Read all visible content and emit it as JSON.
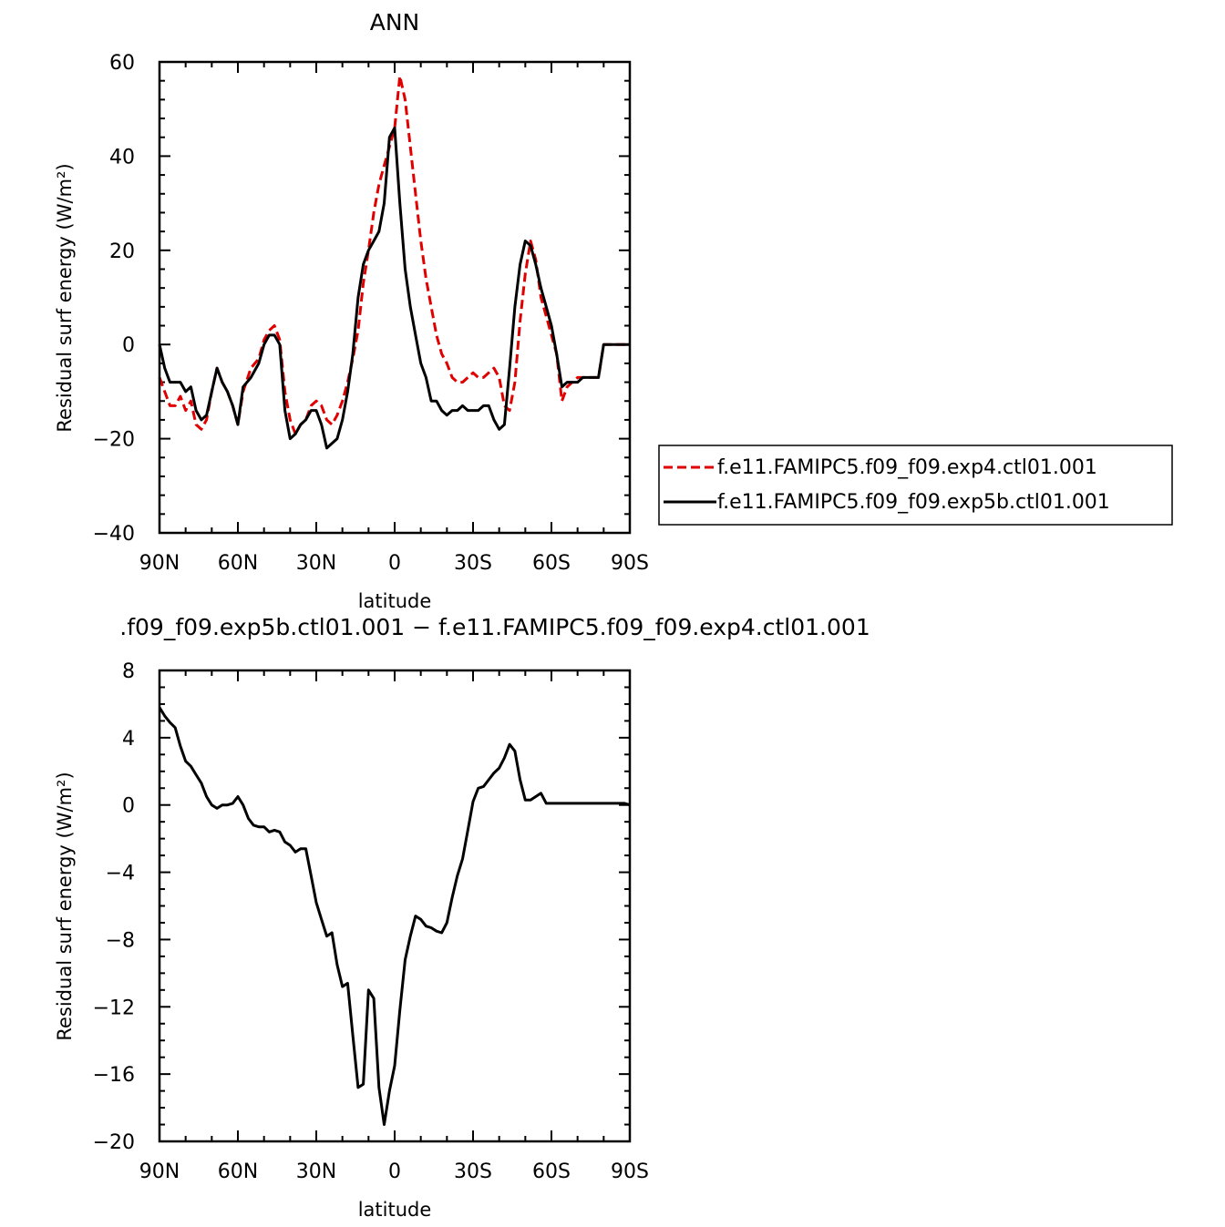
{
  "chart_data": [
    {
      "type": "line",
      "title": "ANN",
      "xlabel": "latitude",
      "ylabel": "Residual surf energy (W/m²)",
      "xlim": [
        90,
        -90
      ],
      "ylim": [
        -40,
        60
      ],
      "x_ticks": [
        90,
        60,
        30,
        0,
        -30,
        -60,
        -90
      ],
      "x_tick_labels": [
        "90N",
        "60N",
        "30N",
        "0",
        "30S",
        "60S",
        "90S"
      ],
      "y_ticks": [
        -40,
        -20,
        0,
        20,
        40,
        60
      ],
      "y_tick_labels": [
        "−40",
        "−20",
        "0",
        "20",
        "40",
        "60"
      ],
      "legend_position": "right",
      "series": [
        {
          "name": "f.e11.FAMIPC5.f09_f09.exp4.ctl01.001",
          "color": "#e00000",
          "dash": "dashed",
          "x": [
            90,
            88,
            86,
            84,
            82,
            80,
            78,
            76,
            74,
            72,
            70,
            68,
            66,
            64,
            62,
            60,
            58,
            55,
            52,
            50,
            48,
            46,
            44,
            42,
            40,
            38,
            36,
            34,
            32,
            30,
            28,
            26,
            24,
            22,
            20,
            18,
            16,
            14,
            12,
            10,
            8,
            6,
            4,
            2,
            0,
            -2,
            -4,
            -6,
            -8,
            -10,
            -12,
            -14,
            -16,
            -18,
            -20,
            -22,
            -24,
            -26,
            -28,
            -30,
            -32,
            -34,
            -36,
            -38,
            -40,
            -42,
            -44,
            -46,
            -48,
            -50,
            -52,
            -54,
            -56,
            -58,
            -60,
            -62,
            -64,
            -66,
            -68,
            -70,
            -72,
            -74,
            -76,
            -78,
            -80,
            -84,
            -88,
            -90
          ],
          "y": [
            -7,
            -10,
            -13,
            -13,
            -11,
            -14,
            -12,
            -17,
            -18,
            -16,
            -10,
            -5,
            -8,
            -10,
            -13,
            -17,
            -10,
            -5,
            -3,
            1,
            3,
            4,
            1,
            -10,
            -16,
            -19,
            -17,
            -16,
            -13,
            -12,
            -13,
            -16,
            -17,
            -15,
            -12,
            -8,
            -3,
            3,
            13,
            20,
            28,
            34,
            38,
            42,
            46,
            57,
            52,
            42,
            32,
            22,
            14,
            8,
            2,
            -2,
            -4,
            -7,
            -8,
            -8,
            -7,
            -6,
            -7,
            -7,
            -6,
            -5,
            -7,
            -13,
            -14,
            -8,
            5,
            15,
            22,
            18,
            10,
            6,
            2,
            -2,
            -12,
            -9,
            -8,
            -7,
            -7,
            -7,
            -7,
            -7,
            0,
            0,
            0,
            0
          ]
        },
        {
          "name": "f.e11.FAMIPC5.f09_f09.exp5b.ctl01.001",
          "color": "#000000",
          "dash": "solid",
          "x": [
            90,
            88,
            86,
            84,
            82,
            80,
            78,
            76,
            74,
            72,
            70,
            68,
            66,
            64,
            62,
            60,
            58,
            55,
            52,
            50,
            48,
            46,
            44,
            42,
            40,
            38,
            36,
            34,
            32,
            30,
            28,
            26,
            24,
            22,
            20,
            18,
            16,
            14,
            12,
            10,
            8,
            6,
            4,
            2,
            0,
            -2,
            -4,
            -6,
            -8,
            -10,
            -12,
            -14,
            -16,
            -18,
            -20,
            -22,
            -24,
            -26,
            -28,
            -30,
            -32,
            -34,
            -36,
            -38,
            -40,
            -42,
            -44,
            -46,
            -48,
            -50,
            -52,
            -54,
            -56,
            -58,
            -60,
            -62,
            -64,
            -66,
            -68,
            -70,
            -72,
            -74,
            -76,
            -78,
            -80,
            -84,
            -88,
            -90
          ],
          "y": [
            0,
            -5,
            -8,
            -8,
            -8,
            -10,
            -9,
            -14,
            -16,
            -15,
            -10,
            -5,
            -8,
            -10,
            -13,
            -17,
            -9,
            -7,
            -4,
            0,
            2,
            2,
            0,
            -14,
            -20,
            -19,
            -17,
            -16,
            -14,
            -14,
            -17,
            -22,
            -21,
            -20,
            -16,
            -10,
            -2,
            10,
            17,
            20,
            22,
            24,
            30,
            44,
            46,
            30,
            16,
            8,
            2,
            -4,
            -7,
            -12,
            -12,
            -14,
            -15,
            -14,
            -14,
            -13,
            -14,
            -14,
            -14,
            -13,
            -13,
            -16,
            -18,
            -17,
            -5,
            8,
            17,
            22,
            21,
            17,
            12,
            8,
            4,
            -2,
            -9,
            -8,
            -8,
            -8,
            -7,
            -7,
            -7,
            -7,
            0,
            0,
            0,
            0
          ]
        }
      ]
    },
    {
      "type": "line",
      "title": ".f09_f09.exp5b.ctl01.001 − f.e11.FAMIPC5.f09_f09.exp4.ctl01.001",
      "xlabel": "latitude",
      "ylabel": "Residual surf energy (W/m²)",
      "xlim": [
        90,
        -90
      ],
      "ylim": [
        -20,
        8
      ],
      "x_ticks": [
        90,
        60,
        30,
        0,
        -30,
        -60,
        -90
      ],
      "x_tick_labels": [
        "90N",
        "60N",
        "30N",
        "0",
        "30S",
        "60S",
        "90S"
      ],
      "y_ticks": [
        -20,
        -16,
        -12,
        -8,
        -4,
        0,
        4,
        8
      ],
      "y_tick_labels": [
        "−20",
        "−16",
        "−12",
        "−8",
        "−4",
        "0",
        "4",
        "8"
      ],
      "series": [
        {
          "color": "#000000",
          "dash": "solid",
          "x": [
            90,
            88,
            86,
            84,
            82,
            80,
            78,
            76,
            74,
            72,
            70,
            68,
            66,
            64,
            62,
            60,
            58,
            56,
            54,
            52,
            50,
            48,
            46,
            44,
            42,
            40,
            38,
            36,
            34,
            32,
            30,
            28,
            26,
            24,
            22,
            20,
            18,
            16,
            14,
            12,
            10,
            8,
            6,
            4,
            2,
            0,
            -2,
            -4,
            -6,
            -8,
            -10,
            -12,
            -14,
            -16,
            -18,
            -20,
            -22,
            -24,
            -26,
            -28,
            -30,
            -32,
            -34,
            -36,
            -38,
            -40,
            -42,
            -44,
            -46,
            -48,
            -50,
            -52,
            -54,
            -56,
            -58,
            -60,
            -62,
            -64,
            -66,
            -68,
            -70,
            -72,
            -74,
            -76,
            -78,
            -80,
            -84,
            -88,
            -90
          ],
          "y": [
            5.8,
            5.3,
            4.9,
            4.6,
            3.5,
            2.6,
            2.3,
            1.8,
            1.3,
            0.5,
            0,
            -0.2,
            0,
            0,
            0.1,
            0.5,
            0,
            -0.8,
            -1.2,
            -1.3,
            -1.3,
            -1.6,
            -1.5,
            -1.6,
            -2.2,
            -2.4,
            -2.8,
            -2.6,
            -2.6,
            -4.2,
            -5.8,
            -6.8,
            -7.8,
            -7.6,
            -9.5,
            -10.8,
            -10.6,
            -13.7,
            -16.8,
            -16.6,
            -11.0,
            -11.5,
            -16.8,
            -19.0,
            -17.0,
            -15.5,
            -12.2,
            -9.2,
            -7.8,
            -6.6,
            -6.8,
            -7.2,
            -7.3,
            -7.5,
            -7.6,
            -7.0,
            -5.5,
            -4.2,
            -3.2,
            -1.5,
            0.2,
            1.0,
            1.1,
            1.5,
            1.9,
            2.2,
            2.8,
            3.6,
            3.2,
            1.5,
            0.3,
            0.3,
            0.5,
            0.7,
            0.1,
            0.1,
            0.1,
            0.1,
            0.1,
            0.1,
            0.1,
            0.1,
            0.1,
            0.1,
            0.1,
            0.1,
            0.1,
            0.1,
            0
          ]
        }
      ]
    }
  ]
}
